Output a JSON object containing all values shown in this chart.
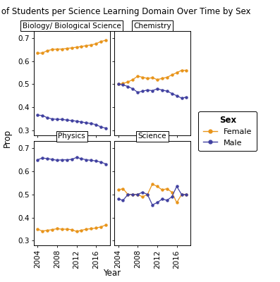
{
  "title": "Count of Students per Science Learning Domain Over Time by Sex",
  "ylabel": "Prop",
  "xlabel": "Year",
  "years": [
    2004,
    2005,
    2006,
    2007,
    2008,
    2009,
    2010,
    2011,
    2012,
    2013,
    2014,
    2015,
    2016,
    2017,
    2018
  ],
  "panels": [
    {
      "label": "Biology/ Biological Science",
      "female": [
        0.634,
        0.635,
        0.645,
        0.65,
        0.652,
        0.652,
        0.655,
        0.657,
        0.66,
        0.663,
        0.667,
        0.67,
        0.675,
        0.685,
        0.69
      ],
      "male": [
        0.366,
        0.365,
        0.355,
        0.35,
        0.348,
        0.348,
        0.345,
        0.343,
        0.34,
        0.337,
        0.333,
        0.33,
        0.325,
        0.315,
        0.31
      ]
    },
    {
      "label": "Chemistry",
      "female": [
        0.5,
        0.503,
        0.51,
        0.52,
        0.535,
        0.53,
        0.525,
        0.528,
        0.52,
        0.525,
        0.53,
        0.54,
        0.55,
        0.56,
        0.56
      ],
      "male": [
        0.5,
        0.497,
        0.49,
        0.48,
        0.465,
        0.47,
        0.475,
        0.472,
        0.48,
        0.475,
        0.47,
        0.46,
        0.45,
        0.44,
        0.444
      ]
    },
    {
      "label": "Physics",
      "female": [
        0.35,
        0.342,
        0.345,
        0.348,
        0.352,
        0.35,
        0.35,
        0.348,
        0.34,
        0.345,
        0.35,
        0.352,
        0.355,
        0.36,
        0.368
      ],
      "male": [
        0.65,
        0.658,
        0.655,
        0.652,
        0.648,
        0.65,
        0.65,
        0.652,
        0.66,
        0.655,
        0.65,
        0.648,
        0.645,
        0.64,
        0.632
      ]
    },
    {
      "label": "Science",
      "female": [
        0.52,
        0.525,
        0.5,
        0.5,
        0.5,
        0.49,
        0.5,
        0.545,
        0.535,
        0.52,
        0.525,
        0.51,
        0.465,
        0.5,
        0.5
      ],
      "male": [
        0.48,
        0.475,
        0.5,
        0.5,
        0.5,
        0.51,
        0.5,
        0.455,
        0.465,
        0.48,
        0.475,
        0.49,
        0.535,
        0.5,
        0.5
      ]
    }
  ],
  "female_color": "#E8941A",
  "male_color": "#4040A0",
  "background_color": "#FFFFFF",
  "panel_bg": "#FFFFFF",
  "ylim": [
    0.28,
    0.73
  ],
  "yticks": [
    0.3,
    0.4,
    0.5,
    0.6,
    0.7
  ],
  "xticks": [
    2004,
    2008,
    2012,
    2016
  ],
  "title_fontsize": 8.5,
  "axis_label_fontsize": 8.5,
  "tick_fontsize": 7.5,
  "legend_fontsize": 8,
  "legend_title_fontsize": 8.5,
  "panel_label_fontsize": 7.5
}
